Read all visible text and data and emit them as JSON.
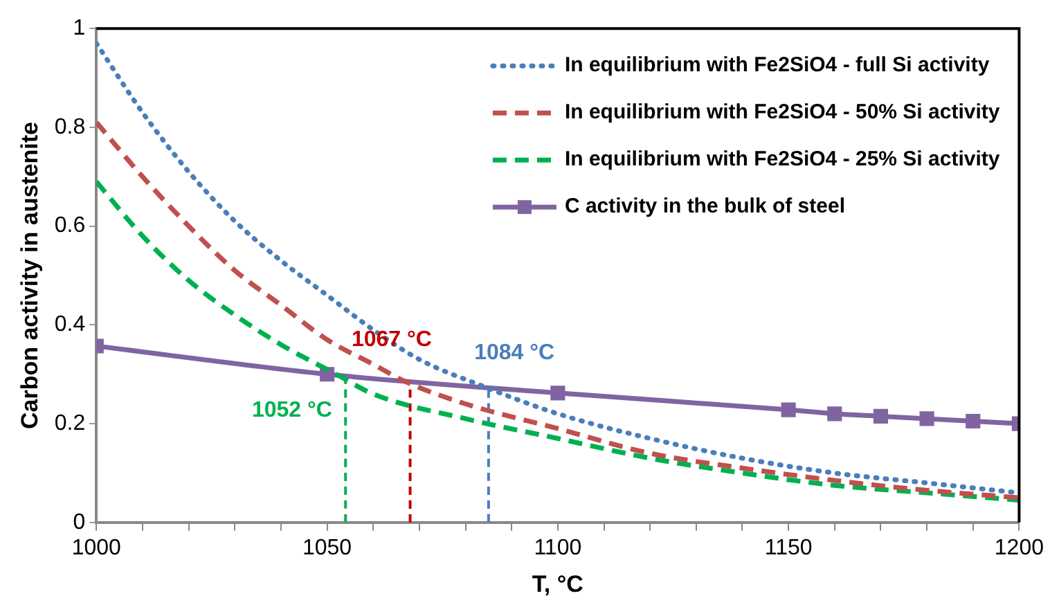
{
  "chart_data": {
    "type": "line",
    "xlabel": "T, °C",
    "ylabel": "Carbon activity in austenite",
    "xlim": [
      1000,
      1200
    ],
    "ylim": [
      0,
      1
    ],
    "xticks": [
      1000,
      {
        "value": 1010,
        "label": null
      },
      {
        "value": 1020,
        "label": null
      },
      {
        "value": 1030,
        "label": null
      },
      {
        "value": 1040,
        "label": null
      },
      1050,
      {
        "value": 1060,
        "label": null
      },
      {
        "value": 1070,
        "label": null
      },
      {
        "value": 1080,
        "label": null
      },
      {
        "value": 1090,
        "label": null
      },
      1100,
      {
        "value": 1110,
        "label": null
      },
      {
        "value": 1120,
        "label": null
      },
      {
        "value": 1130,
        "label": null
      },
      {
        "value": 1140,
        "label": null
      },
      1150,
      {
        "value": 1160,
        "label": null
      },
      {
        "value": 1170,
        "label": null
      },
      {
        "value": 1180,
        "label": null
      },
      {
        "value": 1190,
        "label": null
      },
      1200
    ],
    "yticks": [
      0,
      0.2,
      0.4,
      0.6,
      0.8,
      1
    ],
    "grid": false,
    "legend": "top right",
    "series": [
      {
        "name": "In equilibrium with Fe2SiO4 - full Si activity",
        "color": "#4a7ebb",
        "line_style": "dotted",
        "marker": "none",
        "x": [
          1000,
          1010,
          1020,
          1030,
          1040,
          1050,
          1060,
          1070,
          1084,
          1100,
          1120,
          1140,
          1160,
          1180,
          1200
        ],
        "values": [
          0.97,
          0.83,
          0.71,
          0.61,
          0.53,
          0.46,
          0.39,
          0.33,
          0.275,
          0.22,
          0.17,
          0.13,
          0.1,
          0.08,
          0.06
        ]
      },
      {
        "name": "In equilibrium with Fe2SiO4 - 50% Si activity",
        "color": "#c0504d",
        "line_style": "dashed",
        "marker": "none",
        "x": [
          1000,
          1010,
          1020,
          1030,
          1040,
          1050,
          1060,
          1067,
          1080,
          1100,
          1120,
          1140,
          1160,
          1180,
          1200
        ],
        "values": [
          0.81,
          0.7,
          0.6,
          0.51,
          0.44,
          0.37,
          0.32,
          0.285,
          0.24,
          0.19,
          0.14,
          0.11,
          0.085,
          0.065,
          0.05
        ]
      },
      {
        "name": "In equilibrium with Fe2SiO4 - 25% Si activity",
        "color": "#00b050",
        "line_style": "dashed",
        "marker": "none",
        "x": [
          1000,
          1010,
          1020,
          1030,
          1040,
          1052,
          1060,
          1080,
          1100,
          1120,
          1140,
          1160,
          1180,
          1200
        ],
        "values": [
          0.69,
          0.58,
          0.49,
          0.42,
          0.36,
          0.3,
          0.26,
          0.21,
          0.17,
          0.13,
          0.1,
          0.075,
          0.06,
          0.045
        ]
      },
      {
        "name": "C activity in the bulk of steel",
        "color": "#8064a2",
        "line_style": "solid",
        "marker": "square",
        "x": [
          1000,
          1050,
          1100,
          1150,
          1160,
          1170,
          1180,
          1190,
          1200
        ],
        "values": [
          0.357,
          0.3,
          0.262,
          0.228,
          0.22,
          0.215,
          0.21,
          0.205,
          0.2
        ]
      },
      {
        "color": "#00b050",
        "line_style": "dashed",
        "marker": "none",
        "x": [
          1054,
          1054
        ],
        "values": [
          0,
          0.3
        ]
      },
      {
        "color": "#c00000",
        "line_style": "dashed",
        "marker": "none",
        "x": [
          1068,
          1068
        ],
        "values": [
          0,
          0.285
        ]
      },
      {
        "color": "#4a7ebb",
        "line_style": "dashed",
        "marker": "none",
        "x": [
          1085,
          1085
        ],
        "values": [
          0,
          0.27
        ]
      }
    ],
    "annotations": [
      {
        "text": "1052 °C",
        "x": 1052,
        "y": 0.3
      },
      {
        "text": "1067 °C",
        "x": 1067,
        "y": 0.285
      },
      {
        "text": "1084 °C",
        "x": 1084,
        "y": 0.275
      }
    ]
  }
}
